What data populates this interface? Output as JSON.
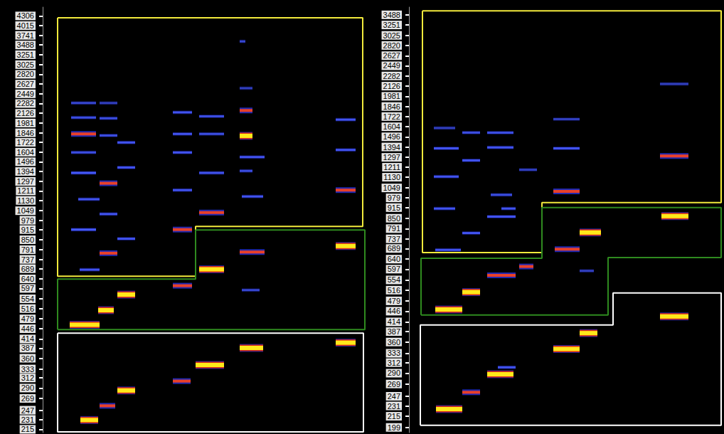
{
  "chart_data": [
    {
      "type": "spectrogram",
      "log": "y",
      "grid": false,
      "tick_labels": "y",
      "xlim": [
        0,
        455
      ],
      "xticks": [],
      "ylim": [
        210,
        4590
      ],
      "yticks": [
        215,
        231,
        247,
        269,
        290,
        312,
        333,
        360,
        387,
        414,
        446,
        479,
        516,
        554,
        597,
        640,
        689,
        737,
        791,
        850,
        915,
        979,
        1049,
        1130,
        1211,
        1297,
        1394,
        1496,
        1604,
        1722,
        1846,
        1981,
        2126,
        2282,
        2449,
        2627,
        2820,
        3025,
        3251,
        3488,
        3741,
        4015,
        4306
      ],
      "segments": [
        {
          "x": [
            53,
            78
          ],
          "y": 230,
          "intensity": 0.9
        },
        {
          "x": [
            80,
            102
          ],
          "y": 255,
          "intensity": 0.65
        },
        {
          "x": [
            105,
            130
          ],
          "y": 285,
          "intensity": 0.85
        },
        {
          "x": [
            183,
            208
          ],
          "y": 305,
          "intensity": 0.55
        },
        {
          "x": [
            215,
            255
          ],
          "y": 343,
          "intensity": 0.9
        },
        {
          "x": [
            277,
            310
          ],
          "y": 388,
          "intensity": 0.85
        },
        {
          "x": [
            412,
            440
          ],
          "y": 403,
          "intensity": 0.95
        },
        {
          "x": [
            38,
            80
          ],
          "y": 459,
          "intensity": 0.9
        },
        {
          "x": [
            78,
            100
          ],
          "y": 510,
          "intensity": 0.95
        },
        {
          "x": [
            105,
            130
          ],
          "y": 571,
          "intensity": 0.8
        },
        {
          "x": [
            183,
            210
          ],
          "y": 609,
          "intensity": 0.7
        },
        {
          "x": [
            280,
            305
          ],
          "y": 590,
          "intensity": 0.25
        },
        {
          "x": [
            220,
            255
          ],
          "y": 686,
          "intensity": 0.75
        },
        {
          "x": [
            277,
            312
          ],
          "y": 777,
          "intensity": 0.65
        },
        {
          "x": [
            412,
            440
          ],
          "y": 812,
          "intensity": 0.85
        },
        {
          "x": [
            52,
            80
          ],
          "y": 684,
          "intensity": 0.35
        },
        {
          "x": [
            80,
            105
          ],
          "y": 771,
          "intensity": 0.65
        },
        {
          "x": [
            105,
            130
          ],
          "y": 856,
          "intensity": 0.35
        },
        {
          "x": [
            40,
            75
          ],
          "y": 915,
          "intensity": 0.45
        },
        {
          "x": [
            183,
            210
          ],
          "y": 915,
          "intensity": 0.5
        },
        {
          "x": [
            80,
            105
          ],
          "y": 1024,
          "intensity": 0.35
        },
        {
          "x": [
            220,
            255
          ],
          "y": 1035,
          "intensity": 0.6
        },
        {
          "x": [
            280,
            310
          ],
          "y": 1163,
          "intensity": 0.35
        },
        {
          "x": [
            412,
            440
          ],
          "y": 1218,
          "intensity": 0.7
        },
        {
          "x": [
            50,
            80
          ],
          "y": 1140,
          "intensity": 0.35
        },
        {
          "x": [
            80,
            105
          ],
          "y": 1280,
          "intensity": 0.55
        },
        {
          "x": [
            105,
            130
          ],
          "y": 1435,
          "intensity": 0.35
        },
        {
          "x": [
            40,
            75
          ],
          "y": 1380,
          "intensity": 0.4
        },
        {
          "x": [
            183,
            210
          ],
          "y": 1218,
          "intensity": 0.35
        },
        {
          "x": [
            220,
            255
          ],
          "y": 1380,
          "intensity": 0.35
        },
        {
          "x": [
            277,
            312
          ],
          "y": 1547,
          "intensity": 0.35
        },
        {
          "x": [
            412,
            440
          ],
          "y": 1630,
          "intensity": 0.35
        },
        {
          "x": [
            40,
            75
          ],
          "y": 1830,
          "intensity": 0.5
        },
        {
          "x": [
            80,
            105
          ],
          "y": 1810,
          "intensity": 0.3
        },
        {
          "x": [
            105,
            130
          ],
          "y": 1720,
          "intensity": 0.35
        },
        {
          "x": [
            183,
            210
          ],
          "y": 1830,
          "intensity": 0.35
        },
        {
          "x": [
            220,
            255
          ],
          "y": 1830,
          "intensity": 0.3
        },
        {
          "x": [
            277,
            295
          ],
          "y": 1805,
          "intensity": 0.8
        },
        {
          "x": [
            277,
            295
          ],
          "y": 2170,
          "intensity": 0.6
        },
        {
          "x": [
            40,
            75
          ],
          "y": 2060,
          "intensity": 0.3
        },
        {
          "x": [
            80,
            105
          ],
          "y": 2050,
          "intensity": 0.3
        },
        {
          "x": [
            183,
            210
          ],
          "y": 2140,
          "intensity": 0.35
        },
        {
          "x": [
            220,
            255
          ],
          "y": 2080,
          "intensity": 0.3
        },
        {
          "x": [
            412,
            440
          ],
          "y": 2030,
          "intensity": 0.35
        },
        {
          "x": [
            40,
            75
          ],
          "y": 2290,
          "intensity": 0.25
        },
        {
          "x": [
            80,
            105
          ],
          "y": 2290,
          "intensity": 0.2
        },
        {
          "x": [
            183,
            210
          ],
          "y": 1600,
          "intensity": 0.35
        },
        {
          "x": [
            40,
            75
          ],
          "y": 1600,
          "intensity": 0.3
        },
        {
          "x": [
            277,
            295
          ],
          "y": 1400,
          "intensity": 0.3
        },
        {
          "x": [
            277,
            295
          ],
          "y": 2550,
          "intensity": 0.2
        },
        {
          "x": [
            277,
            285
          ],
          "y": 3580,
          "intensity": 0.25
        }
      ],
      "regions": [
        {
          "color": "#f2ea3c",
          "points": [
            [
              21,
              4250
            ],
            [
              450,
              4250
            ],
            [
              450,
              936
            ],
            [
              215,
              936
            ],
            [
              215,
              652
            ],
            [
              21,
              652
            ]
          ]
        },
        {
          "color": "#2f8a1f",
          "points": [
            [
              21,
              443
            ],
            [
              21,
              639
            ],
            [
              215,
              639
            ],
            [
              215,
              912
            ],
            [
              453,
              912
            ],
            [
              453,
              443
            ]
          ]
        },
        {
          "color": "#ffffff",
          "points": [
            [
              21,
              432
            ],
            [
              451,
              432
            ],
            [
              451,
              211
            ],
            [
              21,
              211
            ]
          ]
        }
      ]
    },
    {
      "type": "spectrogram",
      "log": "y",
      "grid": false,
      "tick_labels": "y",
      "xlim": [
        0,
        440
      ],
      "xticks": [],
      "ylim": [
        192,
        3680
      ],
      "yticks": [
        199,
        215,
        231,
        247,
        269,
        290,
        312,
        333,
        360,
        387,
        414,
        446,
        479,
        516,
        554,
        597,
        640,
        689,
        737,
        791,
        850,
        915,
        979,
        1049,
        1130,
        1211,
        1297,
        1394,
        1496,
        1604,
        1722,
        1846,
        1981,
        2126,
        2282,
        2449,
        2627,
        2820,
        3025,
        3251,
        3488
      ],
      "segments": [
        {
          "x": [
            38,
            75
          ],
          "y": 226,
          "intensity": 0.9
        },
        {
          "x": [
            75,
            100
          ],
          "y": 254,
          "intensity": 0.5
        },
        {
          "x": [
            110,
            147
          ],
          "y": 288,
          "intensity": 0.8
        },
        {
          "x": [
            125,
            150
          ],
          "y": 302,
          "intensity": 0.35
        },
        {
          "x": [
            203,
            240
          ],
          "y": 343,
          "intensity": 0.9
        },
        {
          "x": [
            240,
            265
          ],
          "y": 383,
          "intensity": 0.8
        },
        {
          "x": [
            353,
            393
          ],
          "y": 430,
          "intensity": 0.95
        },
        {
          "x": [
            37,
            75
          ],
          "y": 451,
          "intensity": 0.85
        },
        {
          "x": [
            75,
            100
          ],
          "y": 509,
          "intensity": 0.85
        },
        {
          "x": [
            110,
            150
          ],
          "y": 572,
          "intensity": 0.65
        },
        {
          "x": [
            155,
            175
          ],
          "y": 608,
          "intensity": 0.7
        },
        {
          "x": [
            205,
            240
          ],
          "y": 686,
          "intensity": 0.65
        },
        {
          "x": [
            240,
            270
          ],
          "y": 770,
          "intensity": 0.75
        },
        {
          "x": [
            355,
            393
          ],
          "y": 863,
          "intensity": 0.85
        },
        {
          "x": [
            240,
            260
          ],
          "y": 590,
          "intensity": 0.2
        },
        {
          "x": [
            37,
            73
          ],
          "y": 682,
          "intensity": 0.35
        },
        {
          "x": [
            75,
            100
          ],
          "y": 767,
          "intensity": 0.35
        },
        {
          "x": [
            110,
            150
          ],
          "y": 859,
          "intensity": 0.35
        },
        {
          "x": [
            130,
            150
          ],
          "y": 909,
          "intensity": 0.35
        },
        {
          "x": [
            35,
            65
          ],
          "y": 909,
          "intensity": 0.35
        },
        {
          "x": [
            203,
            240
          ],
          "y": 1024,
          "intensity": 0.6
        },
        {
          "x": [
            115,
            145
          ],
          "y": 1000,
          "intensity": 0.3
        },
        {
          "x": [
            35,
            70
          ],
          "y": 1135,
          "intensity": 0.35
        },
        {
          "x": [
            75,
            100
          ],
          "y": 1270,
          "intensity": 0.35
        },
        {
          "x": [
            110,
            147
          ],
          "y": 1390,
          "intensity": 0.35
        },
        {
          "x": [
            155,
            180
          ],
          "y": 1190,
          "intensity": 0.2
        },
        {
          "x": [
            203,
            240
          ],
          "y": 1380,
          "intensity": 0.35
        },
        {
          "x": [
            353,
            393
          ],
          "y": 1310,
          "intensity": 0.5
        },
        {
          "x": [
            35,
            70
          ],
          "y": 1380,
          "intensity": 0.35
        },
        {
          "x": [
            75,
            100
          ],
          "y": 1540,
          "intensity": 0.3
        },
        {
          "x": [
            110,
            147
          ],
          "y": 1540,
          "intensity": 0.3
        },
        {
          "x": [
            203,
            240
          ],
          "y": 1690,
          "intensity": 0.2
        },
        {
          "x": [
            353,
            393
          ],
          "y": 2160,
          "intensity": 0.2
        },
        {
          "x": [
            35,
            65
          ],
          "y": 1590,
          "intensity": 0.2
        }
      ],
      "regions": [
        {
          "color": "#f2ea3c",
          "points": [
            [
              19,
              3588
            ],
            [
              439,
              3588
            ],
            [
              439,
              947
            ],
            [
              187,
              947
            ],
            [
              187,
              670
            ],
            [
              19,
              670
            ]
          ]
        },
        {
          "color": "#2f8a1f",
          "points": [
            [
              17,
              434
            ],
            [
              17,
              644
            ],
            [
              187,
              644
            ],
            [
              187,
              915
            ],
            [
              439,
              915
            ],
            [
              439,
              647
            ],
            [
              280,
              647
            ],
            [
              280,
              434
            ]
          ]
        },
        {
          "color": "#ffffff",
          "points": [
            [
              16,
              202
            ],
            [
              16,
              405
            ],
            [
              287,
              405
            ],
            [
              287,
              506
            ],
            [
              439,
              506
            ],
            [
              439,
              202
            ]
          ]
        }
      ]
    }
  ]
}
